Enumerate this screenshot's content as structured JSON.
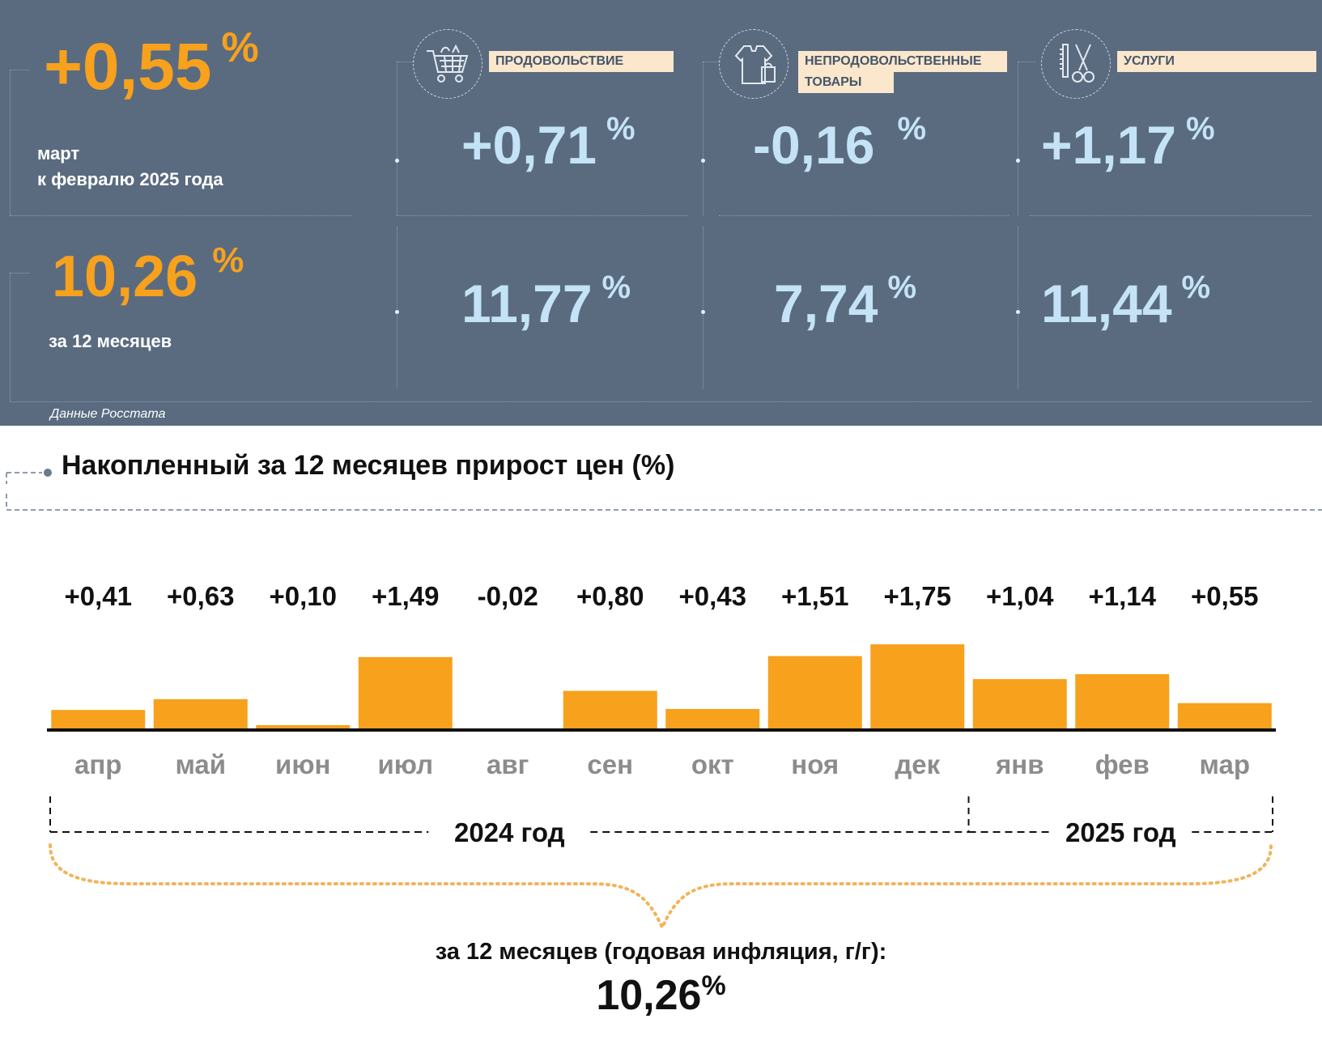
{
  "summary": {
    "monthly": {
      "value": "+0,55",
      "unit": "%",
      "line1": "март",
      "line2": "к февралю 2025 года"
    },
    "annual": {
      "value": "10,26",
      "unit": "%",
      "label": "за 12 месяцев"
    },
    "source": "Данные Росстата"
  },
  "categories": [
    {
      "icon": "shopping-cart-icon",
      "label": "ПРОДОВОЛЬСТВИЕ",
      "monthly": "+0,71",
      "annual": "11,77",
      "unit": "%"
    },
    {
      "icon": "clothing-bag-icon",
      "label_line1": "НЕПРОДОВОЛЬСТВЕННЫЕ",
      "label_line2": "ТОВАРЫ",
      "monthly": "-0,16",
      "annual": "7,74",
      "unit": "%"
    },
    {
      "icon": "scissors-comb-icon",
      "label": "УСЛУГИ",
      "monthly": "+1,17",
      "annual": "11,44",
      "unit": "%"
    }
  ],
  "colors": {
    "panel": "#5a6b80",
    "orange": "#f7a11d",
    "light_blue": "#c5e3f6",
    "label_bg": "#fbe7cc"
  },
  "chart_data": {
    "type": "bar",
    "title": "Накопленный за 12 месяцев прирост цен (%)",
    "categories": [
      "апр",
      "май",
      "июн",
      "июл",
      "авг",
      "сен",
      "окт",
      "ноя",
      "дек",
      "янв",
      "фев",
      "мар"
    ],
    "values": [
      0.41,
      0.63,
      0.1,
      1.49,
      -0.02,
      0.8,
      0.43,
      1.51,
      1.75,
      1.04,
      1.14,
      0.55
    ],
    "value_labels": [
      "+0,41",
      "+0,63",
      "+0,10",
      "+1,49",
      "-0,02",
      "+0,80",
      "+0,43",
      "+1,51",
      "+1,75",
      "+1,04",
      "+1,14",
      "+0,55"
    ],
    "year_groups": [
      {
        "label": "2024 год",
        "months": 9
      },
      {
        "label": "2025 год",
        "months": 3
      }
    ],
    "bar_color": "#f7a11d",
    "annual_label": "за 12 месяцев (годовая инфляция, г/г):",
    "annual_value": "10,26",
    "annual_unit": "%"
  }
}
